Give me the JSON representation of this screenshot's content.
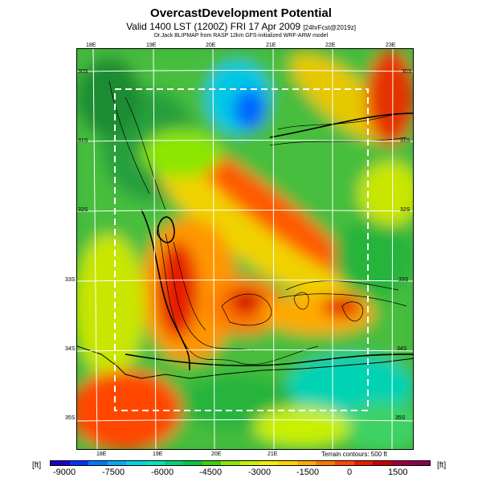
{
  "title": "OvercastDevelopment Potential",
  "subtitle": "Valid 1400 LST (1200Z) FRI 17 Apr 2009",
  "forecast_tag": "[24hrFcst@2019z]",
  "credit": "Dr.Jack BLIPMAP from RASP 12km GFS-initialized WRF-ARW model",
  "terrain_note": "Terrain contours: 500 ft",
  "units": "[ft]",
  "lon_labels_top": [
    "18E",
    "19E",
    "20E",
    "21E",
    "22E",
    "23E"
  ],
  "lon_labels_bottom": [
    "18E",
    "19E",
    "20E",
    "21E"
  ],
  "lat_labels_left": [
    "30S",
    "31S",
    "32S",
    "33S",
    "34S",
    "35S"
  ],
  "lat_labels_right": [
    "30S",
    "31S",
    "32S",
    "33S",
    "34S",
    "35S"
  ],
  "colorbar_labels": [
    "-9000",
    "-7500",
    "-6000",
    "-4500",
    "-3000",
    "-1500",
    "0",
    "1500"
  ],
  "colorbar_colors": [
    "#1a00c8",
    "#0033ff",
    "#0077ff",
    "#00aaff",
    "#00d2e6",
    "#00e6b4",
    "#00d278",
    "#00c83c",
    "#3cd200",
    "#8ce600",
    "#c8f000",
    "#f0f000",
    "#ffd200",
    "#ffaa00",
    "#ff7800",
    "#ff4600",
    "#e61e00",
    "#c80000",
    "#a0003c",
    "#8c0050"
  ]
}
